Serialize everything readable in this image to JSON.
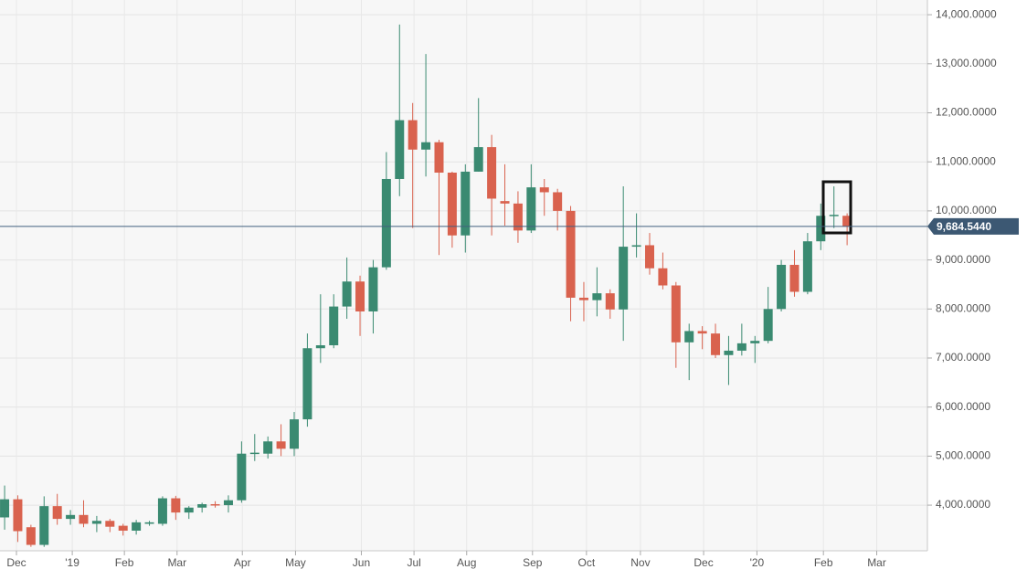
{
  "chart_data": {
    "type": "candlestick",
    "up_color": "#3a8a71",
    "down_color": "#d9624e",
    "open": [
      3750,
      4120,
      3550,
      3190,
      3980,
      3720,
      3800,
      3620,
      3680,
      3580,
      3480,
      3620,
      3620,
      4140,
      3850,
      3950,
      4020,
      4000,
      4100,
      5050,
      5050,
      5300,
      5150,
      5750,
      7200,
      7260,
      8050,
      8560,
      7950,
      8850,
      10650,
      11850,
      11250,
      11400,
      10780,
      9500,
      10800,
      11300,
      10200,
      10150,
      9600,
      10480,
      10380,
      10000,
      8230,
      8180,
      8320,
      7990,
      9270,
      9300,
      8830,
      8480,
      7320,
      7550,
      7500,
      7060,
      7150,
      7300,
      7350,
      8000,
      8900,
      8350,
      9380,
      9900,
      9900
    ],
    "high": [
      4400,
      4200,
      3600,
      4180,
      4230,
      3900,
      4100,
      3780,
      3720,
      3620,
      3700,
      3680,
      4180,
      4190,
      3980,
      4050,
      4080,
      4200,
      5300,
      5450,
      5400,
      5650,
      5900,
      7500,
      8300,
      8300,
      9050,
      8680,
      9000,
      11200,
      13800,
      12200,
      13200,
      11450,
      10800,
      10950,
      12300,
      11550,
      10950,
      10400,
      10950,
      10650,
      10450,
      10100,
      8550,
      8850,
      8400,
      10500,
      9950,
      9550,
      9150,
      8550,
      7700,
      7650,
      7700,
      7450,
      7700,
      7450,
      8450,
      9000,
      9200,
      9550,
      10150,
      10500,
      9950
    ],
    "low": [
      3500,
      3250,
      3150,
      3150,
      3600,
      3600,
      3550,
      3450,
      3450,
      3380,
      3400,
      3580,
      3580,
      3700,
      3720,
      3850,
      3950,
      3850,
      4050,
      4900,
      4950,
      5000,
      5000,
      5600,
      6900,
      7200,
      7800,
      7450,
      7500,
      8800,
      10300,
      9650,
      10700,
      9100,
      9250,
      9150,
      10800,
      9500,
      9700,
      9350,
      9550,
      9900,
      9600,
      7750,
      7750,
      7850,
      7800,
      7350,
      9050,
      8700,
      8400,
      6800,
      6550,
      7180,
      7000,
      6450,
      7050,
      6900,
      7300,
      7950,
      8250,
      8300,
      9200,
      9650,
      9300
    ],
    "close": [
      4120,
      3470,
      3190,
      3980,
      3720,
      3800,
      3620,
      3680,
      3560,
      3480,
      3650,
      3650,
      4140,
      3850,
      3950,
      4020,
      4000,
      4100,
      5050,
      5070,
      5300,
      5150,
      5750,
      7200,
      7260,
      8050,
      8560,
      7950,
      8850,
      10650,
      11850,
      11250,
      11400,
      10780,
      9500,
      10800,
      11300,
      10250,
      10150,
      9600,
      10480,
      10380,
      10000,
      8230,
      8180,
      8320,
      7990,
      9270,
      9300,
      8830,
      8480,
      7320,
      7550,
      7500,
      7060,
      7150,
      7300,
      7350,
      8000,
      8900,
      8350,
      9380,
      9900,
      9920,
      9684.544
    ],
    "last_price": {
      "value": 9684.544,
      "label": "9,684.5440"
    },
    "xlim": [
      -0.35,
      70.1
    ],
    "xticks": [
      {
        "value": 0.9,
        "label": "Dec"
      },
      {
        "value": 5.14,
        "label": "'19"
      },
      {
        "value": 9.1,
        "label": "Feb"
      },
      {
        "value": 13.1,
        "label": "Mar"
      },
      {
        "value": 18.06,
        "label": "Apr"
      },
      {
        "value": 22.1,
        "label": "May"
      },
      {
        "value": 27.1,
        "label": "Jun"
      },
      {
        "value": 31.1,
        "label": "Jul"
      },
      {
        "value": 35.1,
        "label": "Aug"
      },
      {
        "value": 40.1,
        "label": "Sep"
      },
      {
        "value": 44.2,
        "label": "Oct"
      },
      {
        "value": 48.3,
        "label": "Nov"
      },
      {
        "value": 53.1,
        "label": "Dec"
      },
      {
        "value": 57.15,
        "label": "'20"
      },
      {
        "value": 62.2,
        "label": "Feb"
      },
      {
        "value": 66.25,
        "label": "Mar"
      }
    ],
    "ylim": [
      3070,
      14300
    ],
    "yticks": [
      {
        "value": 4000,
        "label": "4,000.0000"
      },
      {
        "value": 5000,
        "label": "5,000.0000"
      },
      {
        "value": 6000,
        "label": "6,000.0000"
      },
      {
        "value": 7000,
        "label": "7,000.0000"
      },
      {
        "value": 8000,
        "label": "8,000.0000"
      },
      {
        "value": 9000,
        "label": "9,000.0000"
      },
      {
        "value": 10000,
        "label": "10,000.0000"
      },
      {
        "value": 11000,
        "label": "11,000.0000"
      },
      {
        "value": 12000,
        "label": "12,000.0000"
      },
      {
        "value": 13000,
        "label": "13,000.0000"
      },
      {
        "value": 14000,
        "label": "14,000.0000"
      }
    ],
    "grid": true
  }
}
